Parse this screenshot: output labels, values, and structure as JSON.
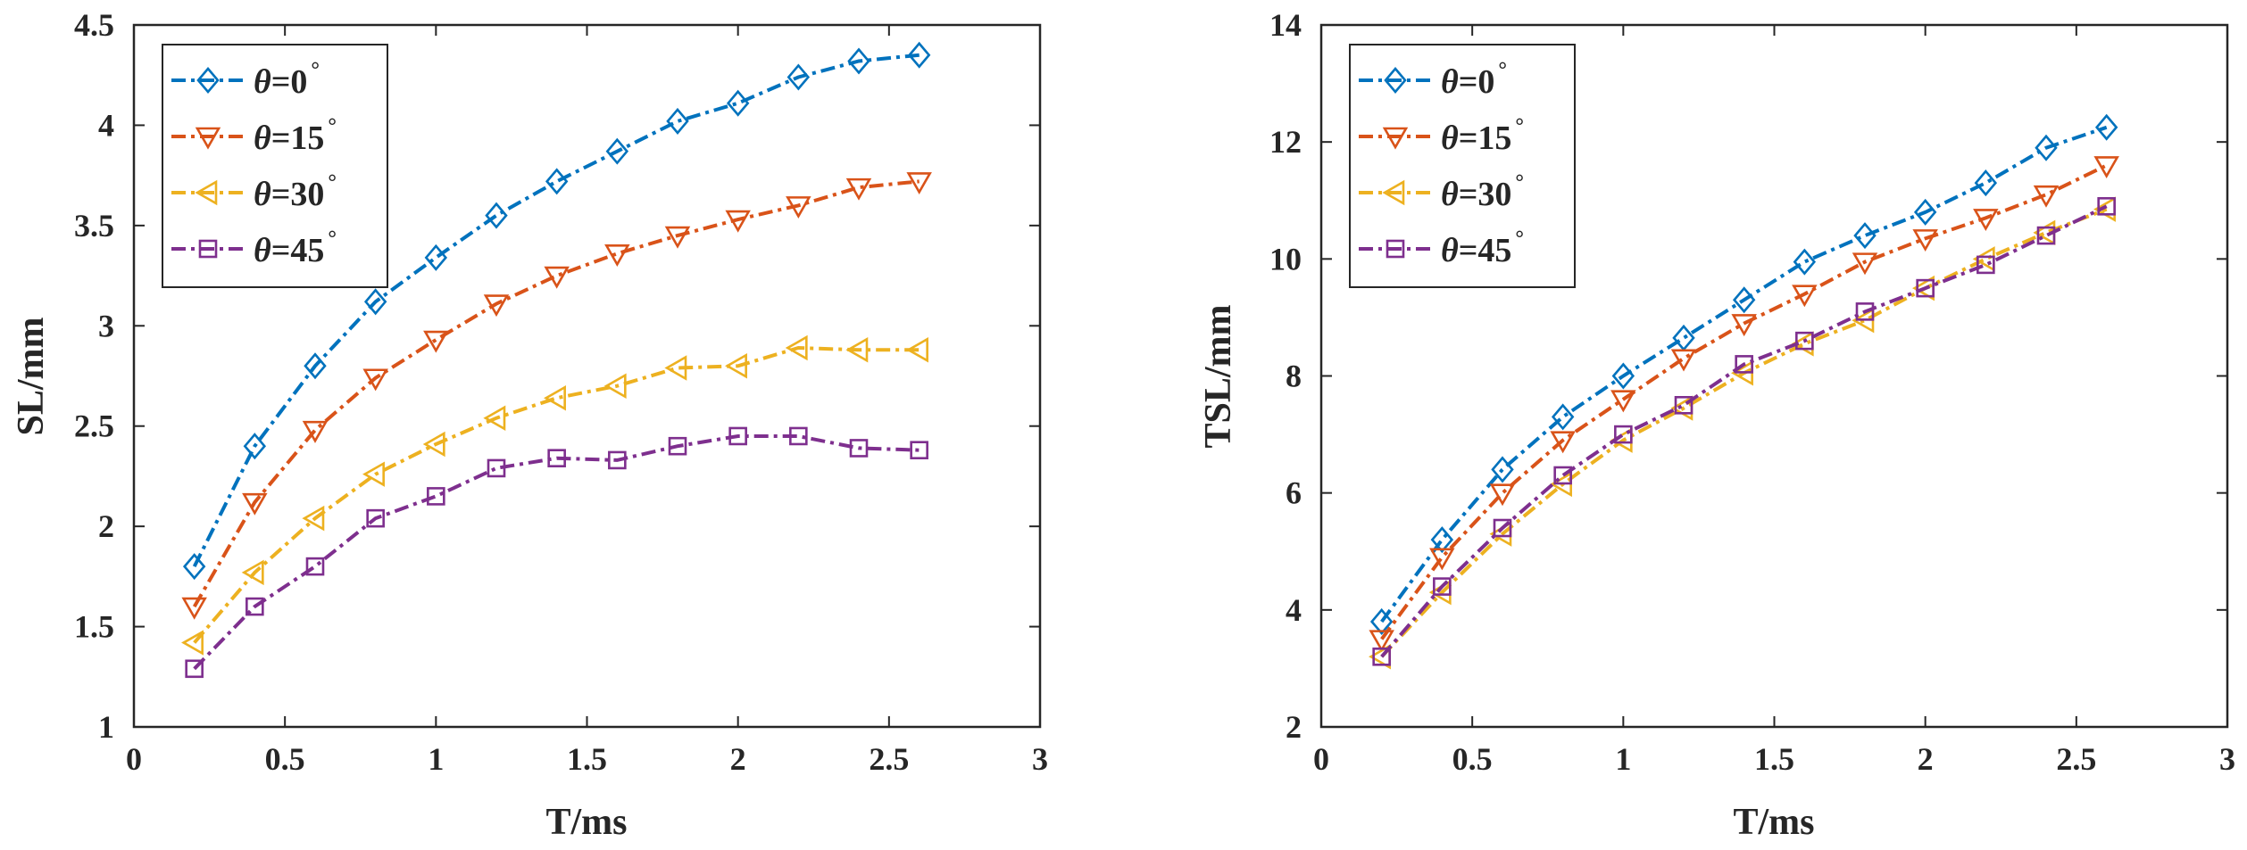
{
  "chart_data": [
    {
      "type": "line",
      "xlabel": "T/ms",
      "ylabel": "SL/mm",
      "xlim": [
        0,
        3
      ],
      "ylim": [
        1,
        4.5
      ],
      "xticks": [
        0,
        0.5,
        1,
        1.5,
        2,
        2.5,
        3
      ],
      "xtick_labels": [
        "0",
        "0.5",
        "1",
        "1.5",
        "2",
        "2.5",
        "3"
      ],
      "yticks": [
        1,
        1.5,
        2,
        2.5,
        3,
        3.5,
        4,
        4.5
      ],
      "ytick_labels": [
        "1",
        "1.5",
        "2",
        "2.5",
        "3",
        "3.5",
        "4",
        "4.5"
      ],
      "legend_position": "top-left",
      "x": [
        0.2,
        0.4,
        0.6,
        0.8,
        1.0,
        1.2,
        1.4,
        1.6,
        1.8,
        2.0,
        2.2,
        2.4,
        2.6
      ],
      "series": [
        {
          "name": "θ=0°",
          "symbol": "θ",
          "value_text": "=0",
          "degree": "°",
          "color": "#0072BD",
          "marker": "diamond",
          "values": [
            1.8,
            2.4,
            2.8,
            3.12,
            3.34,
            3.55,
            3.72,
            3.87,
            4.02,
            4.11,
            4.24,
            4.32,
            4.35
          ]
        },
        {
          "name": "θ=15°",
          "symbol": "θ",
          "value_text": "=15",
          "degree": "°",
          "color": "#D95319",
          "marker": "triangle-down",
          "values": [
            1.6,
            2.12,
            2.48,
            2.74,
            2.93,
            3.11,
            3.25,
            3.36,
            3.45,
            3.53,
            3.6,
            3.69,
            3.72
          ]
        },
        {
          "name": "θ=30°",
          "symbol": "θ",
          "value_text": "=30",
          "degree": "°",
          "color": "#EDB120",
          "marker": "triangle-left",
          "values": [
            1.42,
            1.77,
            2.04,
            2.26,
            2.41,
            2.54,
            2.64,
            2.7,
            2.79,
            2.8,
            2.89,
            2.88,
            2.88
          ]
        },
        {
          "name": "θ=45°",
          "symbol": "θ",
          "value_text": "=45",
          "degree": "°",
          "color": "#7E2F8E",
          "marker": "square",
          "values": [
            1.29,
            1.6,
            1.8,
            2.04,
            2.15,
            2.29,
            2.34,
            2.33,
            2.4,
            2.45,
            2.45,
            2.39,
            2.38
          ]
        }
      ]
    },
    {
      "type": "line",
      "xlabel": "T/ms",
      "ylabel": "TSL/mm",
      "xlim": [
        0,
        3
      ],
      "ylim": [
        2,
        14
      ],
      "xticks": [
        0,
        0.5,
        1,
        1.5,
        2,
        2.5,
        3
      ],
      "xtick_labels": [
        "0",
        "0.5",
        "1",
        "1.5",
        "2",
        "2.5",
        "3"
      ],
      "yticks": [
        2,
        4,
        6,
        8,
        10,
        12,
        14
      ],
      "ytick_labels": [
        "2",
        "4",
        "6",
        "8",
        "10",
        "12",
        "14"
      ],
      "legend_position": "top-left",
      "x": [
        0.2,
        0.4,
        0.6,
        0.8,
        1.0,
        1.2,
        1.4,
        1.6,
        1.8,
        2.0,
        2.2,
        2.4,
        2.6
      ],
      "series": [
        {
          "name": "θ=0°",
          "symbol": "θ",
          "value_text": "=0",
          "degree": "°",
          "color": "#0072BD",
          "marker": "diamond",
          "values": [
            3.8,
            5.2,
            6.4,
            7.3,
            8.0,
            8.65,
            9.3,
            9.95,
            10.4,
            10.8,
            11.3,
            11.9,
            12.25
          ]
        },
        {
          "name": "θ=15°",
          "symbol": "θ",
          "value_text": "=15",
          "degree": "°",
          "color": "#D95319",
          "marker": "triangle-down",
          "values": [
            3.5,
            4.9,
            6.0,
            6.9,
            7.6,
            8.3,
            8.9,
            9.4,
            9.95,
            10.35,
            10.7,
            11.1,
            11.6
          ]
        },
        {
          "name": "θ=30°",
          "symbol": "θ",
          "value_text": "=30",
          "degree": "°",
          "color": "#EDB120",
          "marker": "triangle-left",
          "values": [
            3.2,
            4.3,
            5.3,
            6.15,
            6.9,
            7.45,
            8.05,
            8.55,
            8.95,
            9.5,
            10.0,
            10.45,
            10.85
          ]
        },
        {
          "name": "θ=45°",
          "symbol": "θ",
          "value_text": "=45",
          "degree": "°",
          "color": "#7E2F8E",
          "marker": "square",
          "values": [
            3.2,
            4.4,
            5.4,
            6.3,
            7.0,
            7.5,
            8.2,
            8.6,
            9.1,
            9.5,
            9.9,
            10.4,
            10.9
          ]
        }
      ]
    }
  ]
}
